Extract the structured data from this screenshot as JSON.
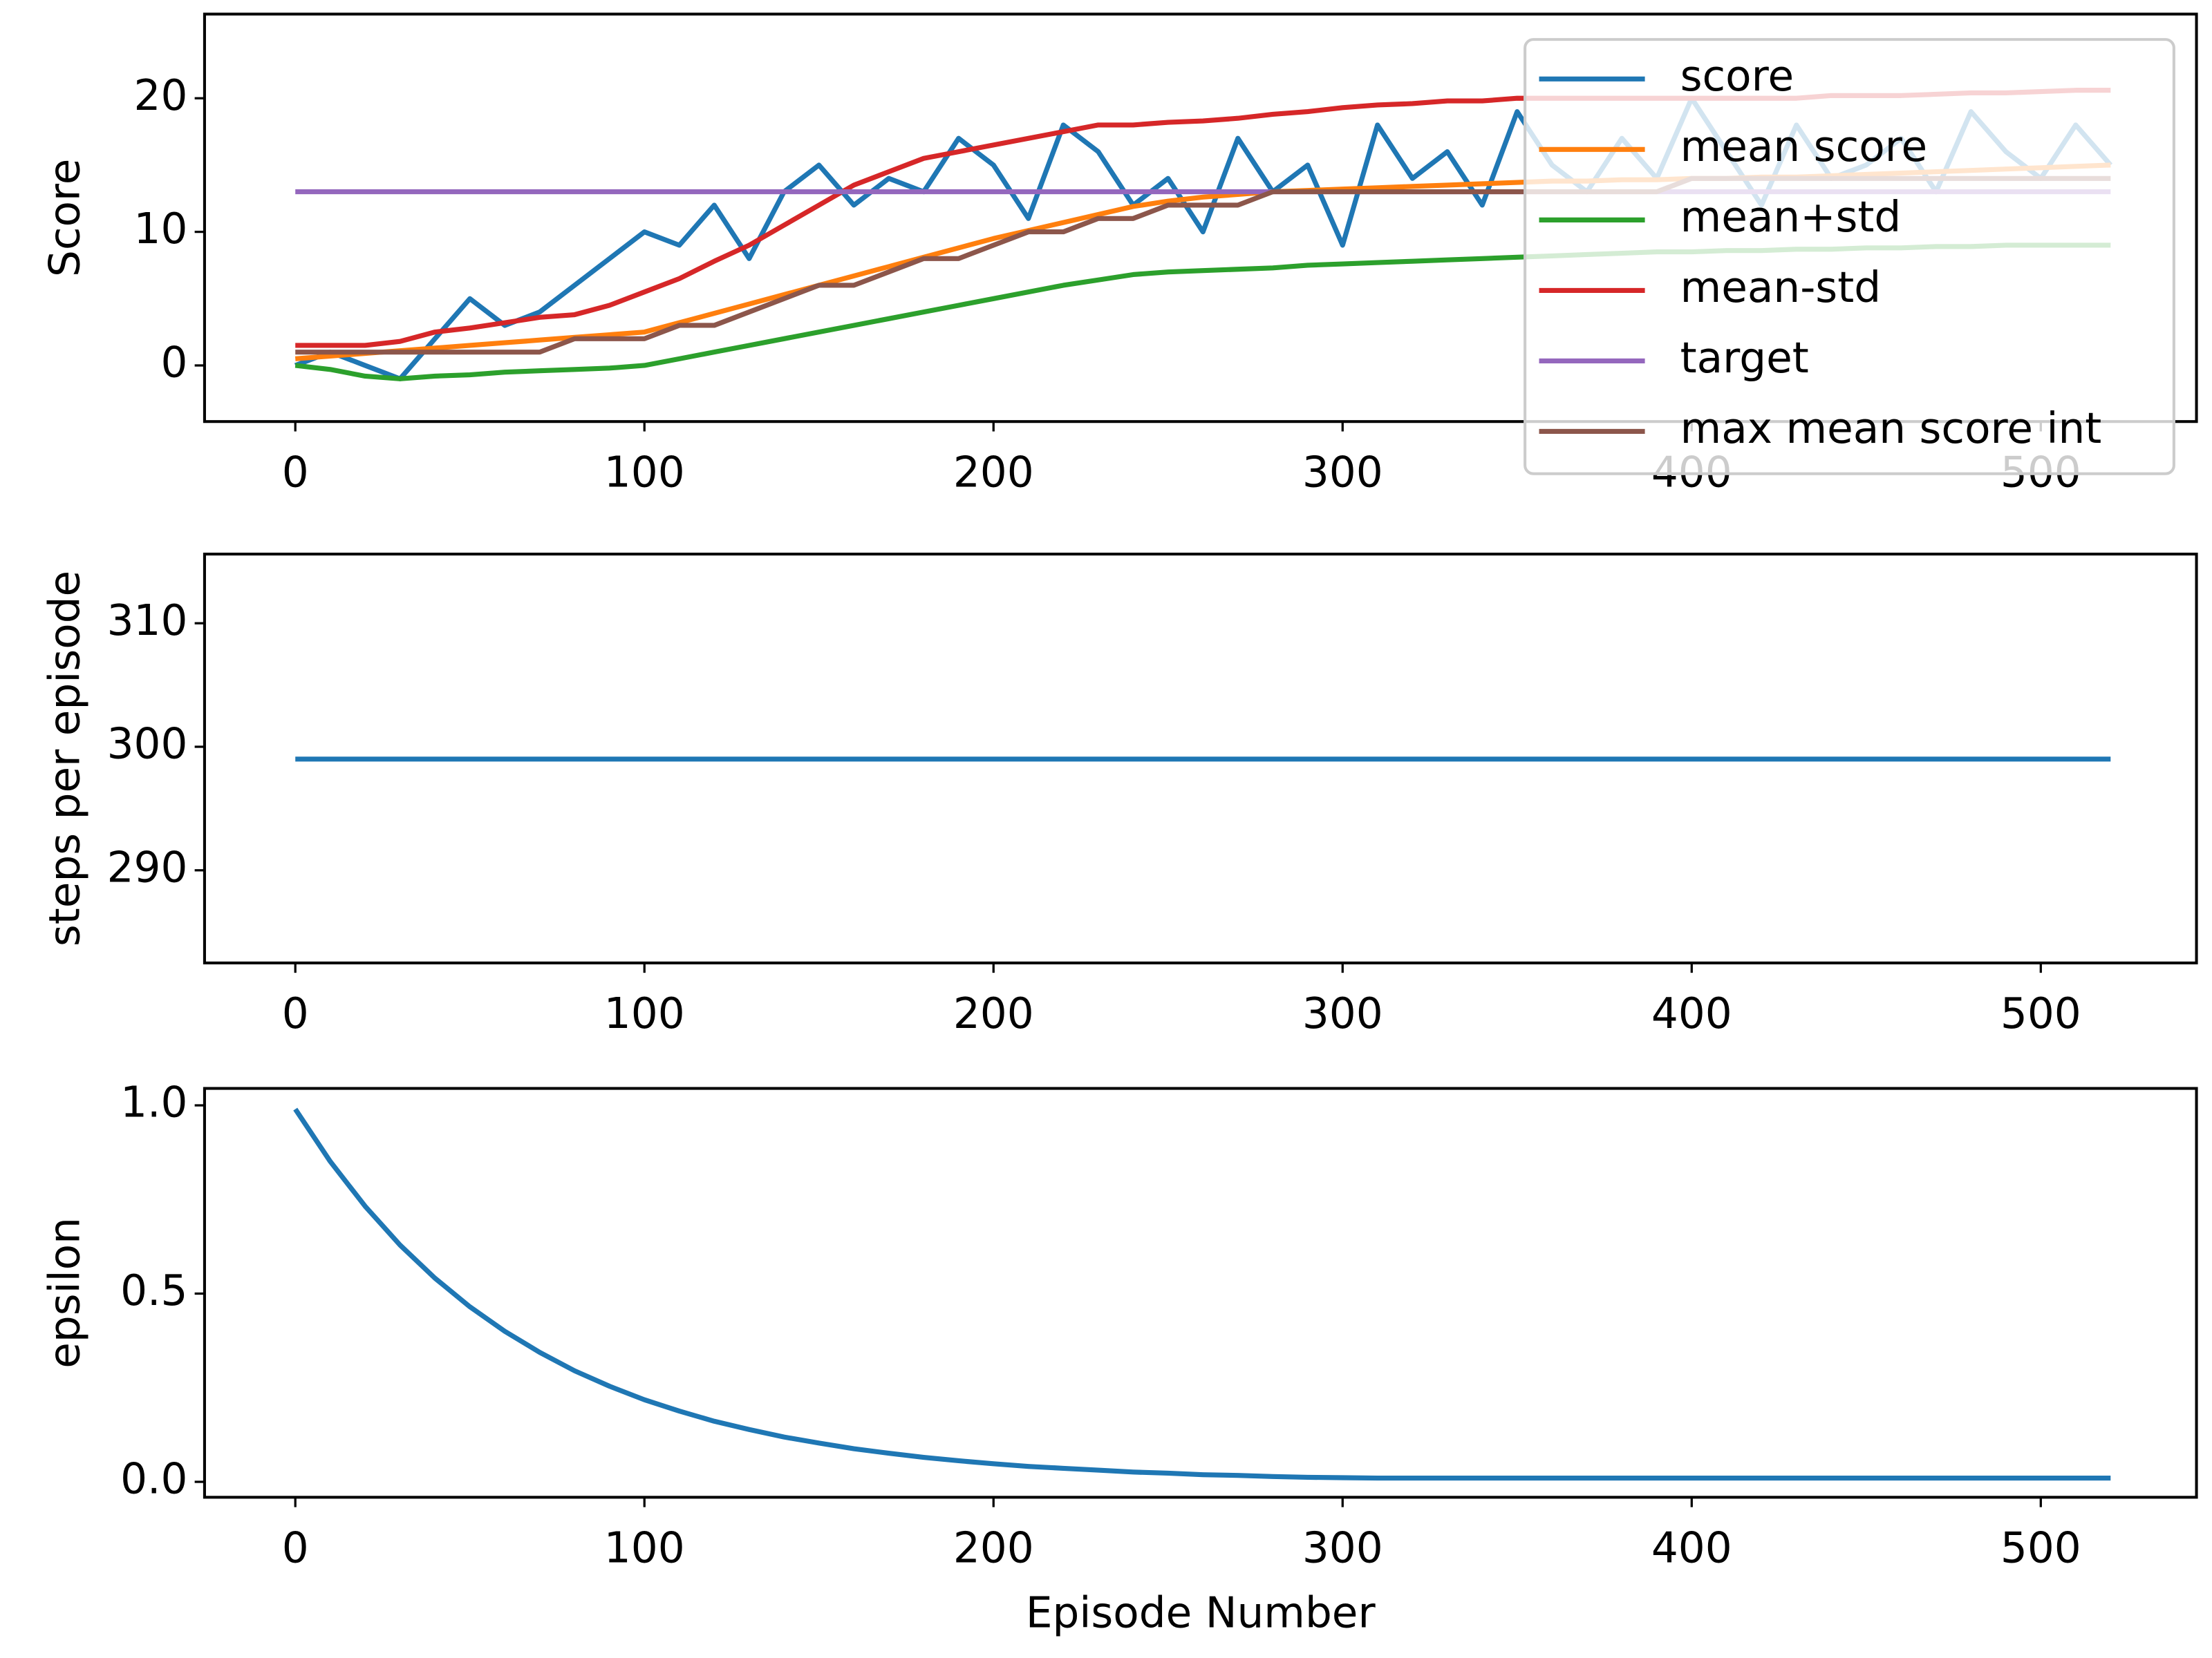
{
  "chart_data": [
    {
      "type": "line",
      "ylabel": "Score",
      "xlim": [
        -26,
        544.6
      ],
      "ylim": [
        -4.2,
        26.3
      ],
      "xticks": [
        0,
        100,
        200,
        300,
        400,
        500
      ],
      "yticks": [
        0,
        10,
        20
      ],
      "legend": "upper right",
      "x": [
        0,
        10,
        20,
        30,
        40,
        50,
        60,
        70,
        80,
        90,
        100,
        110,
        120,
        130,
        140,
        150,
        160,
        170,
        180,
        190,
        200,
        210,
        220,
        230,
        240,
        250,
        260,
        270,
        280,
        290,
        300,
        310,
        320,
        330,
        340,
        350,
        360,
        370,
        380,
        390,
        400,
        410,
        420,
        430,
        440,
        450,
        460,
        470,
        480,
        490,
        500,
        510,
        520
      ],
      "series": [
        {
          "name": "score",
          "color": "#1f77b4",
          "values": [
            0,
            1,
            0,
            -1,
            2,
            5,
            3,
            4,
            6,
            8,
            10,
            9,
            12,
            8,
            13,
            15,
            12,
            14,
            13,
            17,
            15,
            11,
            18,
            16,
            12,
            14,
            10,
            17,
            13,
            15,
            9,
            18,
            14,
            16,
            12,
            19,
            15,
            13,
            17,
            14,
            20,
            16,
            12,
            18,
            14,
            15,
            17,
            13,
            19,
            16,
            14,
            18,
            15
          ]
        },
        {
          "name": "mean score",
          "color": "#ff7f0e",
          "values": [
            0.5,
            0.7,
            0.9,
            1.1,
            1.3,
            1.5,
            1.7,
            1.9,
            2.1,
            2.3,
            2.5,
            3.2,
            3.9,
            4.6,
            5.3,
            6,
            6.7,
            7.4,
            8.1,
            8.8,
            9.5,
            10.1,
            10.7,
            11.3,
            11.9,
            12.3,
            12.6,
            12.8,
            13,
            13.1,
            13.2,
            13.3,
            13.4,
            13.5,
            13.6,
            13.7,
            13.8,
            13.8,
            13.9,
            13.9,
            14,
            14,
            14.1,
            14.1,
            14.2,
            14.3,
            14.4,
            14.5,
            14.6,
            14.7,
            14.8,
            14.9,
            15
          ]
        },
        {
          "name": "mean+std",
          "color": "#2ca02c",
          "values": [
            0,
            -0.3,
            -0.8,
            -1,
            -0.8,
            -0.7,
            -0.5,
            -0.4,
            -0.3,
            -0.2,
            0,
            0.5,
            1,
            1.5,
            2,
            2.5,
            3,
            3.5,
            4,
            4.5,
            5,
            5.5,
            6,
            6.4,
            6.8,
            7,
            7.1,
            7.2,
            7.3,
            7.5,
            7.6,
            7.7,
            7.8,
            7.9,
            8,
            8.1,
            8.2,
            8.3,
            8.4,
            8.5,
            8.5,
            8.6,
            8.6,
            8.7,
            8.7,
            8.8,
            8.8,
            8.9,
            8.9,
            9,
            9,
            9,
            9
          ]
        },
        {
          "name": "mean-std",
          "color": "#d62728",
          "values": [
            1.5,
            1.5,
            1.5,
            1.8,
            2.5,
            2.8,
            3.2,
            3.6,
            3.8,
            4.5,
            5.5,
            6.5,
            7.8,
            9,
            10.5,
            12,
            13.5,
            14.5,
            15.5,
            16,
            16.5,
            17,
            17.5,
            18,
            18,
            18.2,
            18.3,
            18.5,
            18.8,
            19,
            19.3,
            19.5,
            19.6,
            19.8,
            19.8,
            20,
            20,
            20,
            20,
            20,
            20,
            20,
            20,
            20,
            20.2,
            20.2,
            20.2,
            20.3,
            20.4,
            20.4,
            20.5,
            20.6,
            20.6
          ]
        },
        {
          "name": "target",
          "color": "#9467bd",
          "values": [
            13,
            13,
            13,
            13,
            13,
            13,
            13,
            13,
            13,
            13,
            13,
            13,
            13,
            13,
            13,
            13,
            13,
            13,
            13,
            13,
            13,
            13,
            13,
            13,
            13,
            13,
            13,
            13,
            13,
            13,
            13,
            13,
            13,
            13,
            13,
            13,
            13,
            13,
            13,
            13,
            13,
            13,
            13,
            13,
            13,
            13,
            13,
            13,
            13,
            13,
            13,
            13,
            13
          ]
        },
        {
          "name": "max mean score int",
          "color": "#8c564b",
          "values": [
            1,
            1,
            1,
            1,
            1,
            1,
            1,
            1,
            2,
            2,
            2,
            3,
            3,
            4,
            5,
            6,
            6,
            7,
            8,
            8,
            9,
            10,
            10,
            11,
            11,
            12,
            12,
            12,
            13,
            13,
            13,
            13,
            13,
            13,
            13,
            13,
            13,
            13,
            13,
            13,
            14,
            14,
            14,
            14,
            14,
            14,
            14,
            14,
            14,
            14,
            14,
            14,
            14
          ]
        }
      ]
    },
    {
      "type": "line",
      "ylabel": "steps per episode",
      "xlim": [
        -26,
        544.6
      ],
      "ylim": [
        282.5,
        315.6
      ],
      "xticks": [
        0,
        100,
        200,
        300,
        400,
        500
      ],
      "yticks": [
        290,
        300,
        310
      ],
      "x": [
        0,
        520
      ],
      "series": [
        {
          "color": "#1f77b4",
          "values": [
            299,
            299
          ]
        }
      ]
    },
    {
      "type": "line",
      "ylabel": "epsilon",
      "xlabel": "Episode Number",
      "xlim": [
        -26,
        544.6
      ],
      "ylim": [
        -0.041,
        1.045
      ],
      "xticks": [
        0,
        100,
        200,
        300,
        400,
        500
      ],
      "yticks": [
        {
          "value": 0,
          "label": "0.0"
        },
        {
          "value": 0.5,
          "label": "0.5"
        },
        {
          "value": 1,
          "label": "1.0"
        }
      ],
      "x": [
        0,
        10,
        20,
        30,
        40,
        50,
        60,
        70,
        80,
        90,
        100,
        110,
        120,
        130,
        140,
        150,
        160,
        170,
        180,
        190,
        200,
        210,
        220,
        230,
        240,
        250,
        260,
        270,
        280,
        290,
        300,
        310,
        320,
        330,
        340,
        350,
        360,
        370,
        380,
        390,
        400,
        410,
        420,
        430,
        440,
        450,
        460,
        470,
        480,
        490,
        500,
        510,
        520
      ],
      "series": [
        {
          "color": "#1f77b4",
          "values": [
            0.99,
            0.851,
            0.732,
            0.629,
            0.541,
            0.465,
            0.4,
            0.344,
            0.295,
            0.254,
            0.218,
            0.188,
            0.161,
            0.139,
            0.119,
            0.103,
            0.088,
            0.076,
            0.065,
            0.056,
            0.048,
            0.041,
            0.036,
            0.031,
            0.026,
            0.023,
            0.019,
            0.017,
            0.014,
            0.012,
            0.011,
            0.01,
            0.01,
            0.01,
            0.01,
            0.01,
            0.01,
            0.01,
            0.01,
            0.01,
            0.01,
            0.01,
            0.01,
            0.01,
            0.01,
            0.01,
            0.01,
            0.01,
            0.01,
            0.01,
            0.01,
            0.01,
            0.01
          ]
        }
      ]
    }
  ]
}
